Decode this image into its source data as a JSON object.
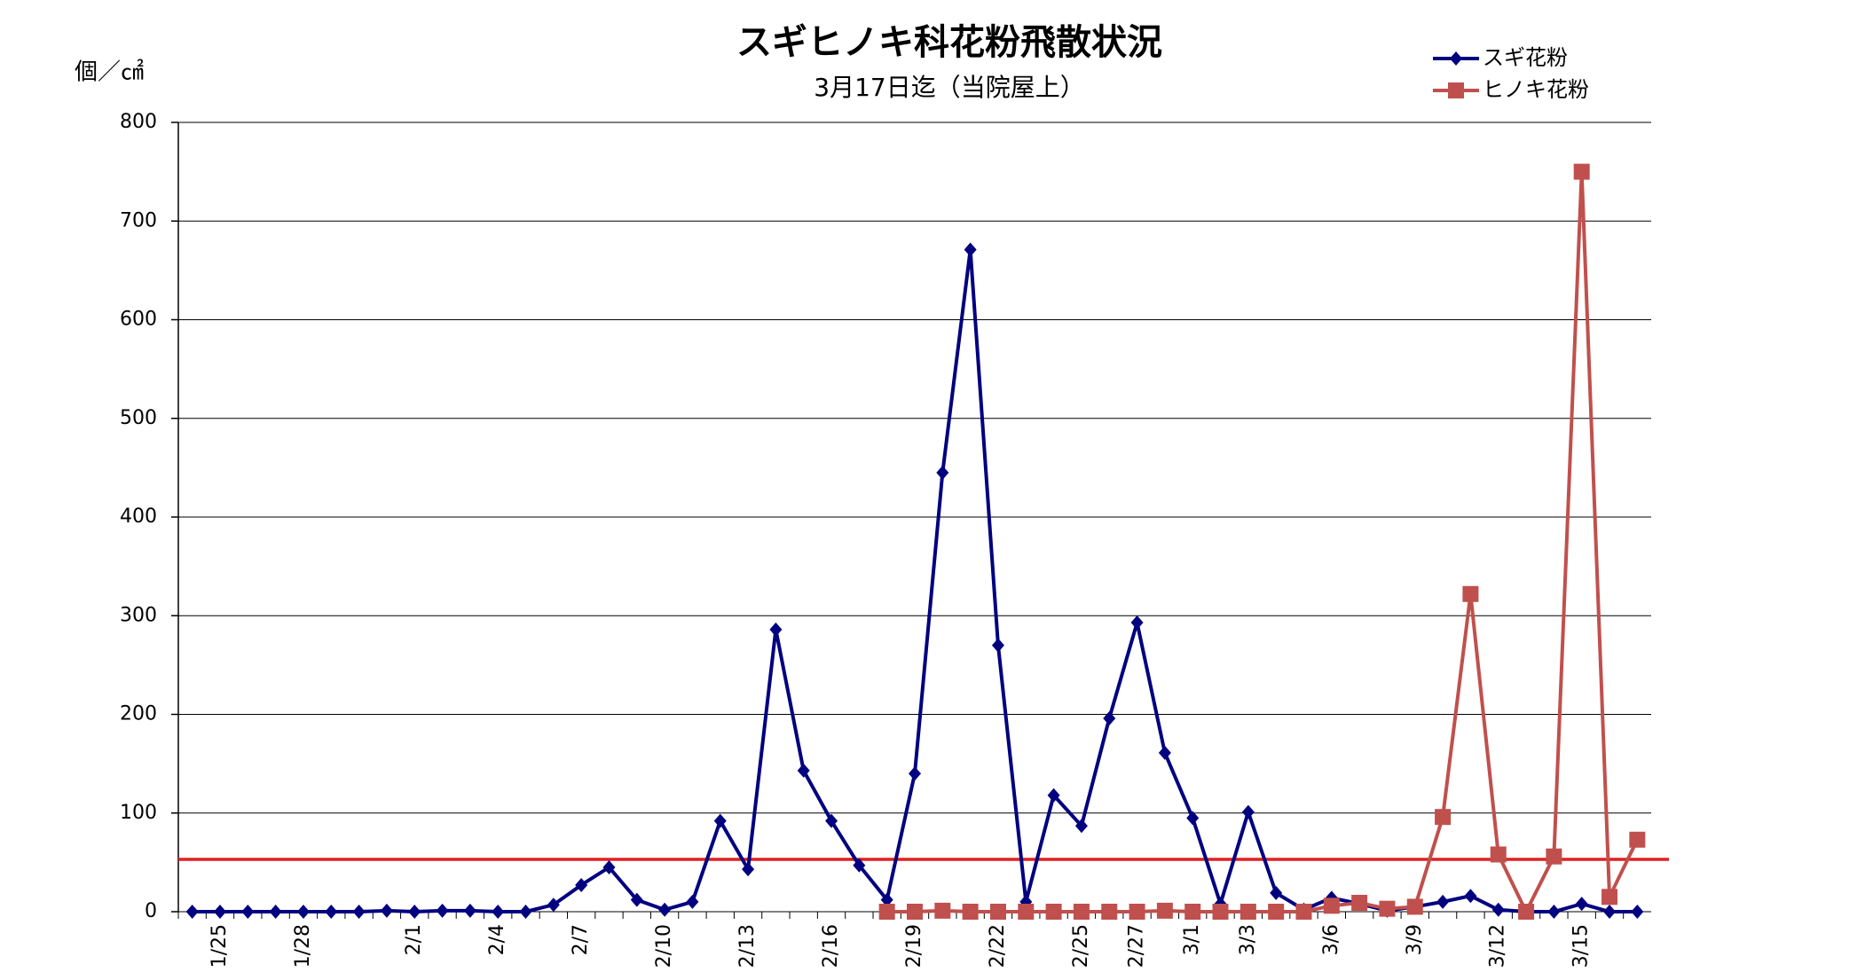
{
  "chart_data": {
    "type": "line",
    "title": "スギヒノキ科花粉飛散状況",
    "subtitle": "3月17日迄（当院屋上）",
    "y_label": "個／㎠",
    "categories": [
      null,
      "1/25",
      null,
      null,
      "1/28",
      null,
      null,
      null,
      "2/1",
      null,
      null,
      "2/4",
      null,
      null,
      "2/7",
      null,
      null,
      "2/10",
      null,
      null,
      "2/13",
      null,
      null,
      "2/16",
      null,
      null,
      "2/19",
      null,
      null,
      "2/22",
      null,
      null,
      "2/25",
      null,
      "2/27",
      null,
      "3/1",
      null,
      "3/3",
      null,
      null,
      "3/6",
      null,
      null,
      "3/9",
      null,
      null,
      "3/12",
      null,
      null,
      "3/15",
      null,
      null
    ],
    "series": [
      {
        "name": "スギ花粉",
        "color": "#000080",
        "marker": "diamond",
        "values": [
          0,
          0,
          0,
          0,
          0,
          0,
          0,
          1,
          0,
          1,
          1,
          0,
          0,
          7,
          27,
          45,
          12,
          2,
          10,
          92,
          43,
          286,
          143,
          92,
          47,
          12,
          140,
          445,
          671,
          270,
          10,
          118,
          87,
          196,
          293,
          161,
          95,
          8,
          101,
          19,
          2,
          14,
          8,
          1,
          5,
          10,
          16,
          2,
          0,
          0,
          8,
          0,
          0
        ]
      },
      {
        "name": "ヒノキ花粉",
        "color": "#c0504d",
        "marker": "square",
        "values": [
          null,
          null,
          null,
          null,
          null,
          null,
          null,
          null,
          null,
          null,
          null,
          null,
          null,
          null,
          null,
          null,
          null,
          null,
          null,
          null,
          null,
          null,
          null,
          null,
          null,
          0,
          0,
          1,
          0,
          0,
          0,
          0,
          0,
          0,
          0,
          1,
          0,
          0,
          0,
          0,
          0,
          6,
          9,
          3,
          5,
          96,
          322,
          58,
          0,
          56,
          750,
          15,
          73
        ]
      }
    ],
    "reference_value": 53,
    "reference_color": "#e02020",
    "ylim": [
      0,
      800
    ],
    "yticks": [
      0,
      100,
      200,
      300,
      400,
      500,
      600,
      700,
      800
    ],
    "grid": true,
    "legend": "top-right"
  }
}
